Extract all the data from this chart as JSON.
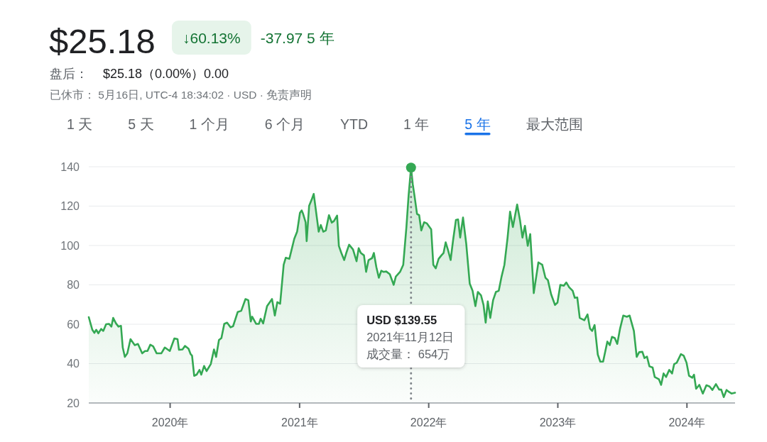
{
  "chart_data": {
    "type": "area",
    "title": "$25.18",
    "x": [
      "2019-05-16",
      "2019-05-26",
      "2019-06-01",
      "2019-06-06",
      "2019-06-12",
      "2019-06-20",
      "2019-06-26",
      "2019-07-04",
      "2019-07-12",
      "2019-07-19",
      "2019-07-24",
      "2019-08-01",
      "2019-08-08",
      "2019-08-15",
      "2019-08-20",
      "2019-08-26",
      "2019-09-02",
      "2019-09-11",
      "2019-09-23",
      "2019-10-02",
      "2019-10-14",
      "2019-10-22",
      "2019-10-29",
      "2019-11-06",
      "2019-11-14",
      "2019-11-24",
      "2019-12-07",
      "2019-12-17",
      "2019-12-31",
      "2020-01-13",
      "2020-01-22",
      "2020-01-26",
      "2020-02-05",
      "2020-02-12",
      "2020-02-22",
      "2020-02-28",
      "2020-03-03",
      "2020-03-09",
      "2020-03-16",
      "2020-03-24",
      "2020-03-29",
      "2020-04-06",
      "2020-04-13",
      "2020-04-25",
      "2020-05-04",
      "2020-05-10",
      "2020-05-18",
      "2020-05-25",
      "2020-06-02",
      "2020-06-10",
      "2020-06-20",
      "2020-06-27",
      "2020-07-10",
      "2020-07-20",
      "2020-08-01",
      "2020-08-09",
      "2020-08-16",
      "2020-08-20",
      "2020-08-31",
      "2020-09-08",
      "2020-09-13",
      "2020-09-20",
      "2020-10-01",
      "2020-10-15",
      "2020-10-23",
      "2020-10-30",
      "2020-11-07",
      "2020-11-17",
      "2020-11-23",
      "2020-12-03",
      "2020-12-17",
      "2020-12-25",
      "2021-01-02",
      "2021-01-07",
      "2021-01-11",
      "2021-01-18",
      "2021-01-21",
      "2021-01-28",
      "2021-02-04",
      "2021-02-10",
      "2021-02-24",
      "2021-03-02",
      "2021-03-09",
      "2021-03-16",
      "2021-03-25",
      "2021-04-02",
      "2021-04-08",
      "2021-04-17",
      "2021-04-22",
      "2021-04-29",
      "2021-05-07",
      "2021-05-13",
      "2021-05-21",
      "2021-06-01",
      "2021-06-11",
      "2021-06-17",
      "2021-06-23",
      "2021-07-02",
      "2021-07-08",
      "2021-07-15",
      "2021-07-25",
      "2021-07-30",
      "2021-08-06",
      "2021-08-13",
      "2021-08-20",
      "2021-08-26",
      "2021-09-03",
      "2021-09-13",
      "2021-09-24",
      "2021-09-30",
      "2021-10-12",
      "2021-10-21",
      "2021-10-30",
      "2021-11-05",
      "2021-11-12",
      "2021-11-17",
      "2021-11-22",
      "2021-11-29",
      "2021-12-05",
      "2021-12-11",
      "2021-12-19",
      "2021-12-27",
      "2022-01-08",
      "2022-01-14",
      "2022-01-21",
      "2022-01-29",
      "2022-02-06",
      "2022-02-12",
      "2022-02-18",
      "2022-02-25",
      "2022-03-04",
      "2022-03-11",
      "2022-03-19",
      "2022-03-25",
      "2022-03-31",
      "2022-04-08",
      "2022-04-17",
      "2022-04-27",
      "2022-05-05",
      "2022-05-13",
      "2022-05-20",
      "2022-05-29",
      "2022-06-05",
      "2022-06-11",
      "2022-06-17",
      "2022-06-24",
      "2022-07-02",
      "2022-07-10",
      "2022-07-18",
      "2022-07-26",
      "2022-08-03",
      "2022-08-12",
      "2022-08-19",
      "2022-08-27",
      "2022-09-08",
      "2022-09-16",
      "2022-09-23",
      "2022-09-30",
      "2022-10-08",
      "2022-10-15",
      "2022-10-25",
      "2022-11-07",
      "2022-11-18",
      "2022-11-27",
      "2022-12-04",
      "2022-12-13",
      "2022-12-24",
      "2022-12-31",
      "2023-01-08",
      "2023-01-18",
      "2023-01-25",
      "2023-02-02",
      "2023-02-12",
      "2023-02-18",
      "2023-02-25",
      "2023-03-04",
      "2023-03-17",
      "2023-03-26",
      "2023-04-02",
      "2023-04-08",
      "2023-04-15",
      "2023-04-24",
      "2023-05-01",
      "2023-05-09",
      "2023-05-21",
      "2023-05-28",
      "2023-06-03",
      "2023-06-11",
      "2023-06-18",
      "2023-06-26",
      "2023-07-05",
      "2023-07-15",
      "2023-07-23",
      "2023-08-04",
      "2023-08-12",
      "2023-08-19",
      "2023-08-28",
      "2023-09-03",
      "2023-09-10",
      "2023-09-17",
      "2023-09-26",
      "2023-10-02",
      "2023-10-14",
      "2023-10-20",
      "2023-10-27",
      "2023-11-03",
      "2023-11-12",
      "2023-11-20",
      "2023-11-26",
      "2023-12-03",
      "2023-12-15",
      "2023-12-23",
      "2023-12-31",
      "2024-01-07",
      "2024-01-16",
      "2024-01-21",
      "2024-01-27",
      "2024-02-05",
      "2024-02-15",
      "2024-02-25",
      "2024-03-05",
      "2024-03-13",
      "2024-03-23",
      "2024-04-01",
      "2024-04-07",
      "2024-04-14",
      "2024-04-22",
      "2024-04-29",
      "2024-05-06",
      "2024-05-16"
    ],
    "series": [
      {
        "color": "#34a853",
        "values": [
          63.6,
          57.2,
          55.6,
          57.2,
          55.4,
          57.6,
          56.6,
          60.0,
          60.2,
          58.8,
          63.2,
          60.4,
          58.8,
          59.2,
          48.2,
          43.4,
          45.2,
          52.4,
          49.4,
          50.0,
          45.2,
          46.4,
          46.4,
          49.6,
          48.8,
          45.2,
          45.2,
          48.2,
          46.4,
          52.8,
          52.4,
          47.0,
          47.2,
          49.0,
          47.6,
          44.8,
          44.0,
          33.8,
          34.4,
          36.8,
          34.4,
          38.8,
          36.2,
          39.8,
          47.2,
          43.4,
          52.0,
          53.0,
          60.2,
          60.8,
          58.4,
          59.0,
          66.2,
          66.8,
          72.8,
          72.2,
          61.4,
          63.8,
          60.2,
          60.2,
          62.8,
          60.4,
          69.2,
          72.8,
          64.4,
          71.2,
          70.4,
          90.2,
          93.8,
          93.2,
          103.4,
          107.0,
          116.6,
          117.8,
          116.0,
          111.8,
          102.2,
          120.2,
          123.2,
          126.2,
          107.0,
          110.4,
          107.0,
          107.6,
          115.4,
          111.6,
          112.4,
          115.2,
          99.8,
          96.2,
          92.6,
          96.2,
          100.4,
          98.0,
          92.0,
          98.6,
          96.2,
          95.0,
          86.6,
          92.6,
          93.6,
          96.2,
          89.0,
          83.6,
          87.2,
          86.6,
          86.8,
          85.4,
          80.0,
          84.2,
          86.6,
          90.2,
          109.4,
          125.0,
          139.55,
          131.0,
          125.0,
          116.0,
          115.4,
          107.6,
          111.8,
          111.2,
          108.2,
          90.2,
          88.4,
          93.2,
          95.0,
          96.2,
          101.6,
          97.4,
          92.6,
          102.8,
          113.0,
          113.2,
          104.0,
          114.2,
          101.0,
          80.6,
          77.0,
          69.2,
          76.4,
          74.6,
          69.8,
          60.8,
          71.6,
          63.2,
          72.2,
          76.4,
          77.0,
          84.2,
          90.2,
          104.0,
          117.2,
          109.4,
          120.8,
          113.0,
          104.0,
          110.0,
          99.8,
          105.8,
          75.8,
          91.4,
          90.2,
          83.6,
          82.4,
          75.2,
          69.8,
          71.0,
          80.0,
          79.6,
          81.2,
          78.8,
          77.0,
          73.4,
          73.6,
          63.2,
          62.0,
          65.0,
          57.8,
          56.6,
          59.6,
          44.6,
          41.0,
          41.0,
          51.2,
          49.4,
          53.6,
          53.0,
          50.0,
          57.8,
          64.4,
          63.8,
          64.4,
          56.6,
          43.4,
          45.8,
          46.0,
          42.8,
          43.6,
          38.6,
          38.0,
          33.2,
          32.0,
          29.2,
          35.0,
          33.2,
          36.8,
          35.0,
          39.8,
          40.4,
          44.8,
          44.0,
          40.4,
          33.8,
          32.8,
          34.4,
          27.2,
          29.2,
          24.8,
          29.0,
          28.4,
          26.6,
          29.6,
          26.8,
          26.8,
          23.0,
          26.6,
          25.6,
          24.8,
          25.2
        ]
      },
      {
        "type": "scatter",
        "color": "#34a853",
        "x": [
          "2021-11-12"
        ],
        "values": [
          139.55
        ]
      }
    ],
    "xlim": [
      "2019-05-16",
      "2024-05-16"
    ],
    "ylim": [
      20,
      140
    ],
    "xticks": [
      {
        "value": "2020-01-01",
        "label": "2020年"
      },
      {
        "value": "2021-01-01",
        "label": "2021年"
      },
      {
        "value": "2022-01-01",
        "label": "2022年"
      },
      {
        "value": "2023-01-01",
        "label": "2023年"
      },
      {
        "value": "2024-01-01",
        "label": "2024年"
      }
    ],
    "yticks": [
      20,
      40,
      60,
      80,
      100,
      120,
      140
    ],
    "grid": "y",
    "ref_lines": [
      {
        "axis": "x",
        "value": "2021-11-12",
        "color": "#80868b",
        "line_style": "dotted"
      }
    ],
    "annotations": [
      "↓60.13%",
      "-37.97 5 年",
      "盘后：",
      "$25.18（0.00%）0.00",
      "已休市： 5月16日, UTC-4 18:34:02 · USD · 免责声明",
      "1 天",
      "5 天",
      "1 个月",
      "6 个月",
      "YTD",
      "1 年",
      "5 年",
      "最大范围",
      "USD $139.55",
      "2021年11月12日",
      "成交量： 654万"
    ]
  }
}
